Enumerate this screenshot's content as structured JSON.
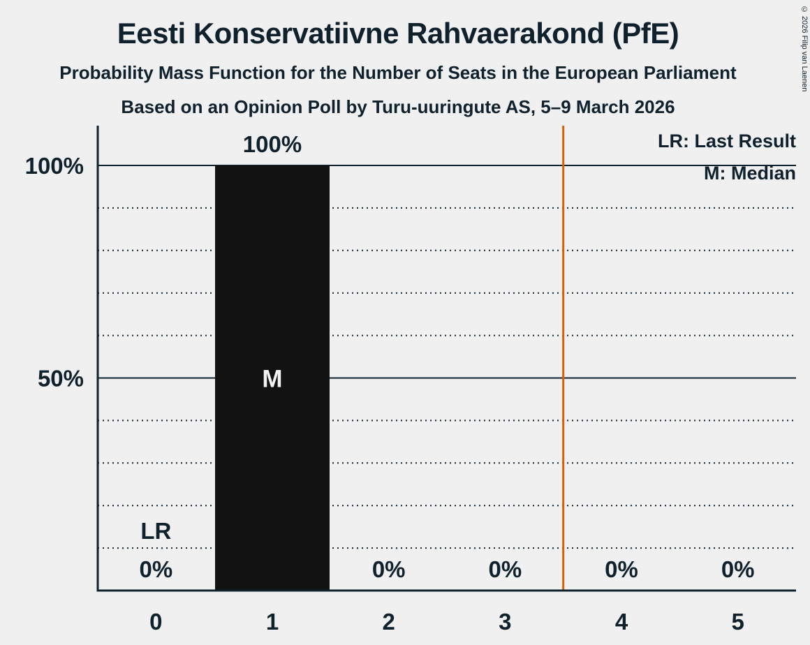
{
  "header": {
    "title": "Eesti Konservatiivne Rahvaerakond (PfE)",
    "subtitle": "Probability Mass Function for the Number of Seats in the European Parliament",
    "source_line": "Based on an Opinion Poll by Turu-uuringute AS, 5–9 March 2026",
    "copyright": "© 2026 Filip van Laenen"
  },
  "legend": {
    "last_result": "LR: Last Result",
    "median": "M: Median"
  },
  "chart_data": {
    "type": "bar",
    "title": "Eesti Konservatiivne Rahvaerakond (PfE)",
    "categories": [
      "0",
      "1",
      "2",
      "3",
      "4",
      "5"
    ],
    "values": [
      0,
      100,
      0,
      0,
      0,
      0
    ],
    "value_labels": [
      "0%",
      "100%",
      "0%",
      "0%",
      "0%",
      "0%"
    ],
    "ylim": [
      0,
      100
    ],
    "yticks": [
      {
        "value": 100,
        "label": "100%"
      },
      {
        "value": 50,
        "label": "50%"
      }
    ],
    "grid": {
      "solid": [
        50,
        100
      ],
      "dotted": [
        10,
        20,
        30,
        40,
        60,
        70,
        80,
        90
      ]
    },
    "legend_position": "top-right",
    "annotations": {
      "median": {
        "category_index": 1,
        "text": "M"
      },
      "last_result": {
        "category_index": 0,
        "text": "LR"
      },
      "reference_line": {
        "position": 3.5
      }
    },
    "colors": {
      "background": "#F0F0F0",
      "ink": "#10212E",
      "bar": "#121212",
      "bar_inner_label": "#F2F2F2",
      "reference_line": "#D4620C"
    }
  }
}
